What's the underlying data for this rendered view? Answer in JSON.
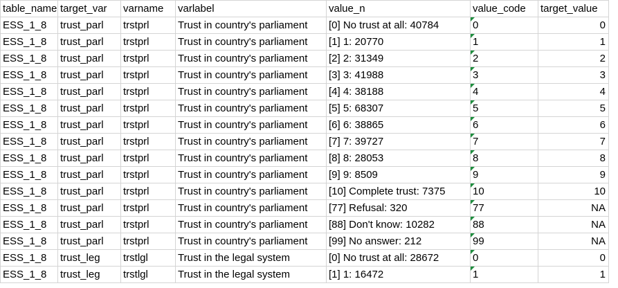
{
  "sheet": {
    "headers": [
      "table_name",
      "target_var",
      "varname",
      "varlabel",
      "value_n",
      "value_code",
      "target_value"
    ],
    "rows": [
      [
        "ESS_1_8",
        "trust_parl",
        "trstprl",
        "Trust in country's parliament",
        "[0] No trust at all: 40784",
        "0",
        "0"
      ],
      [
        "ESS_1_8",
        "trust_parl",
        "trstprl",
        "Trust in country's parliament",
        "[1] 1: 20770",
        "1",
        "1"
      ],
      [
        "ESS_1_8",
        "trust_parl",
        "trstprl",
        "Trust in country's parliament",
        "[2] 2: 31349",
        "2",
        "2"
      ],
      [
        "ESS_1_8",
        "trust_parl",
        "trstprl",
        "Trust in country's parliament",
        "[3] 3: 41988",
        "3",
        "3"
      ],
      [
        "ESS_1_8",
        "trust_parl",
        "trstprl",
        "Trust in country's parliament",
        "[4] 4: 38188",
        "4",
        "4"
      ],
      [
        "ESS_1_8",
        "trust_parl",
        "trstprl",
        "Trust in country's parliament",
        "[5] 5: 68307",
        "5",
        "5"
      ],
      [
        "ESS_1_8",
        "trust_parl",
        "trstprl",
        "Trust in country's parliament",
        "[6] 6: 38865",
        "6",
        "6"
      ],
      [
        "ESS_1_8",
        "trust_parl",
        "trstprl",
        "Trust in country's parliament",
        "[7] 7: 39727",
        "7",
        "7"
      ],
      [
        "ESS_1_8",
        "trust_parl",
        "trstprl",
        "Trust in country's parliament",
        "[8] 8: 28053",
        "8",
        "8"
      ],
      [
        "ESS_1_8",
        "trust_parl",
        "trstprl",
        "Trust in country's parliament",
        "[9] 9: 8509",
        "9",
        "9"
      ],
      [
        "ESS_1_8",
        "trust_parl",
        "trstprl",
        "Trust in country's parliament",
        "[10] Complete trust: 7375",
        "10",
        "10"
      ],
      [
        "ESS_1_8",
        "trust_parl",
        "trstprl",
        "Trust in country's parliament",
        "[77] Refusal: 320",
        "77",
        "NA"
      ],
      [
        "ESS_1_8",
        "trust_parl",
        "trstprl",
        "Trust in country's parliament",
        "[88] Don't know: 10282",
        "88",
        "NA"
      ],
      [
        "ESS_1_8",
        "trust_parl",
        "trstprl",
        "Trust in country's parliament",
        "[99] No answer: 212",
        "99",
        "NA"
      ],
      [
        "ESS_1_8",
        "trust_leg",
        "trstlgl",
        "Trust in the legal system",
        "[0] No trust at all: 28672",
        "0",
        "0"
      ],
      [
        "ESS_1_8",
        "trust_leg",
        "trstlgl",
        "Trust in the legal system",
        "[1] 1: 16472",
        "1",
        "1"
      ]
    ]
  }
}
